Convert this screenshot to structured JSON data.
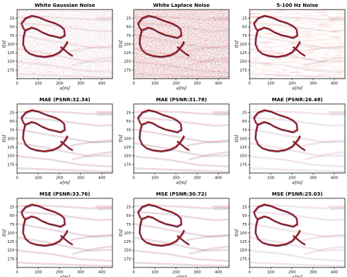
{
  "chart_data": [
    {
      "type": "heatmap",
      "title": "White Gaussian Noise",
      "xlabel": "x[m]",
      "ylabel": "t[s]",
      "xlim": [
        0,
        450
      ],
      "ylim": [
        200,
        0
      ],
      "xticks": [
        0,
        100,
        200,
        300,
        400
      ],
      "yticks": [
        25,
        50,
        75,
        100,
        125,
        150,
        175
      ],
      "xtick_labels": [
        "0",
        "100",
        "200",
        "300",
        "400"
      ],
      "ytick_labels": [
        "25",
        "50",
        "75",
        "100",
        "125",
        "150",
        "175"
      ],
      "colormap": "seismic (red/blue)",
      "content": "noisy seismic section"
    },
    {
      "type": "heatmap",
      "title": "White Laplace Noise",
      "xlabel": "x[m]",
      "ylabel": "t[s]",
      "xlim": [
        0,
        450
      ],
      "ylim": [
        200,
        0
      ],
      "xticks": [
        0,
        100,
        200,
        300,
        400
      ],
      "yticks": [
        25,
        50,
        75,
        100,
        125,
        150,
        175
      ],
      "xtick_labels": [
        "0",
        "100",
        "200",
        "300",
        "400"
      ],
      "ytick_labels": [
        "25",
        "50",
        "75",
        "100",
        "125",
        "150",
        "175"
      ],
      "colormap": "seismic (red/blue)",
      "content": "noisy seismic section"
    },
    {
      "type": "heatmap",
      "title": "5-100 Hz Noise",
      "xlabel": "x[m]",
      "ylabel": "t[s]",
      "xlim": [
        0,
        450
      ],
      "ylim": [
        200,
        0
      ],
      "xticks": [
        0,
        100,
        200,
        300,
        400
      ],
      "yticks": [
        25,
        50,
        75,
        100,
        125,
        150,
        175
      ],
      "xtick_labels": [
        "0",
        "100",
        "200",
        "300",
        "400"
      ],
      "ytick_labels": [
        "25",
        "50",
        "75",
        "100",
        "125",
        "150",
        "175"
      ],
      "colormap": "seismic (red/blue)",
      "content": "noisy seismic section"
    },
    {
      "type": "heatmap",
      "title": "MAE (PSNR:32.34)",
      "xlabel": "x[m]",
      "ylabel": "t[s]",
      "xlim": [
        0,
        450
      ],
      "ylim": [
        200,
        0
      ],
      "xticks": [
        0,
        100,
        200,
        300,
        400
      ],
      "yticks": [
        25,
        50,
        75,
        100,
        125,
        150,
        175
      ],
      "xtick_labels": [
        "0",
        "100",
        "200",
        "300",
        "400"
      ],
      "ytick_labels": [
        "25",
        "50",
        "75",
        "100",
        "125",
        "150",
        "175"
      ],
      "colormap": "seismic (red/blue)",
      "content": "denoised seismic section"
    },
    {
      "type": "heatmap",
      "title": "MAE (PSNR:31.78)",
      "xlabel": "x[m]",
      "ylabel": "t[s]",
      "xlim": [
        0,
        450
      ],
      "ylim": [
        200,
        0
      ],
      "xticks": [
        0,
        100,
        200,
        300,
        400
      ],
      "yticks": [
        25,
        50,
        75,
        100,
        125,
        150,
        175
      ],
      "xtick_labels": [
        "0",
        "100",
        "200",
        "300",
        "400"
      ],
      "ytick_labels": [
        "25",
        "50",
        "75",
        "100",
        "125",
        "150",
        "175"
      ],
      "colormap": "seismic (red/blue)",
      "content": "denoised seismic section"
    },
    {
      "type": "heatmap",
      "title": "MAE (PSNR:26.48)",
      "xlabel": "x[m]",
      "ylabel": "t[s]",
      "xlim": [
        0,
        450
      ],
      "ylim": [
        200,
        0
      ],
      "xticks": [
        0,
        100,
        200,
        300,
        400
      ],
      "yticks": [
        25,
        50,
        75,
        100,
        125,
        150,
        175
      ],
      "xtick_labels": [
        "0",
        "100",
        "200",
        "300",
        "400"
      ],
      "ytick_labels": [
        "25",
        "50",
        "75",
        "100",
        "125",
        "150",
        "175"
      ],
      "colormap": "seismic (red/blue)",
      "content": "denoised seismic section"
    },
    {
      "type": "heatmap",
      "title": "MSE (PSNR:33.76)",
      "xlabel": "x[m]",
      "ylabel": "t[s]",
      "xlim": [
        0,
        450
      ],
      "ylim": [
        200,
        0
      ],
      "xticks": [
        0,
        100,
        200,
        300,
        400
      ],
      "yticks": [
        25,
        50,
        75,
        100,
        125,
        150,
        175
      ],
      "xtick_labels": [
        "0",
        "100",
        "200",
        "300",
        "400"
      ],
      "ytick_labels": [
        "25",
        "50",
        "75",
        "100",
        "125",
        "150",
        "175"
      ],
      "colormap": "seismic (red/blue)",
      "content": "denoised seismic section"
    },
    {
      "type": "heatmap",
      "title": "MSE (PSNR:30.72)",
      "xlabel": "x[m]",
      "ylabel": "t[s]",
      "xlim": [
        0,
        450
      ],
      "ylim": [
        200,
        0
      ],
      "xticks": [
        0,
        100,
        200,
        300,
        400
      ],
      "yticks": [
        25,
        50,
        75,
        100,
        125,
        150,
        175
      ],
      "xtick_labels": [
        "0",
        "100",
        "200",
        "300",
        "400"
      ],
      "ytick_labels": [
        "25",
        "50",
        "75",
        "100",
        "125",
        "150",
        "175"
      ],
      "colormap": "seismic (red/blue)",
      "content": "denoised seismic section"
    },
    {
      "type": "heatmap",
      "title": "MSE (PSNR:25.03)",
      "xlabel": "x[m]",
      "ylabel": "t[s]",
      "xlim": [
        0,
        450
      ],
      "ylim": [
        200,
        0
      ],
      "xticks": [
        0,
        100,
        200,
        300,
        400
      ],
      "yticks": [
        25,
        50,
        75,
        100,
        125,
        150,
        175
      ],
      "xtick_labels": [
        "0",
        "100",
        "200",
        "300",
        "400"
      ],
      "ytick_labels": [
        "25",
        "50",
        "75",
        "100",
        "125",
        "150",
        "175"
      ],
      "colormap": "seismic (red/blue)",
      "content": "denoised seismic section"
    }
  ],
  "colors": {
    "positive": "#d62728",
    "strong_positive": "#7a0000",
    "negative": "#2b5fb5",
    "axes": "#000000",
    "background": "#ffffff"
  }
}
